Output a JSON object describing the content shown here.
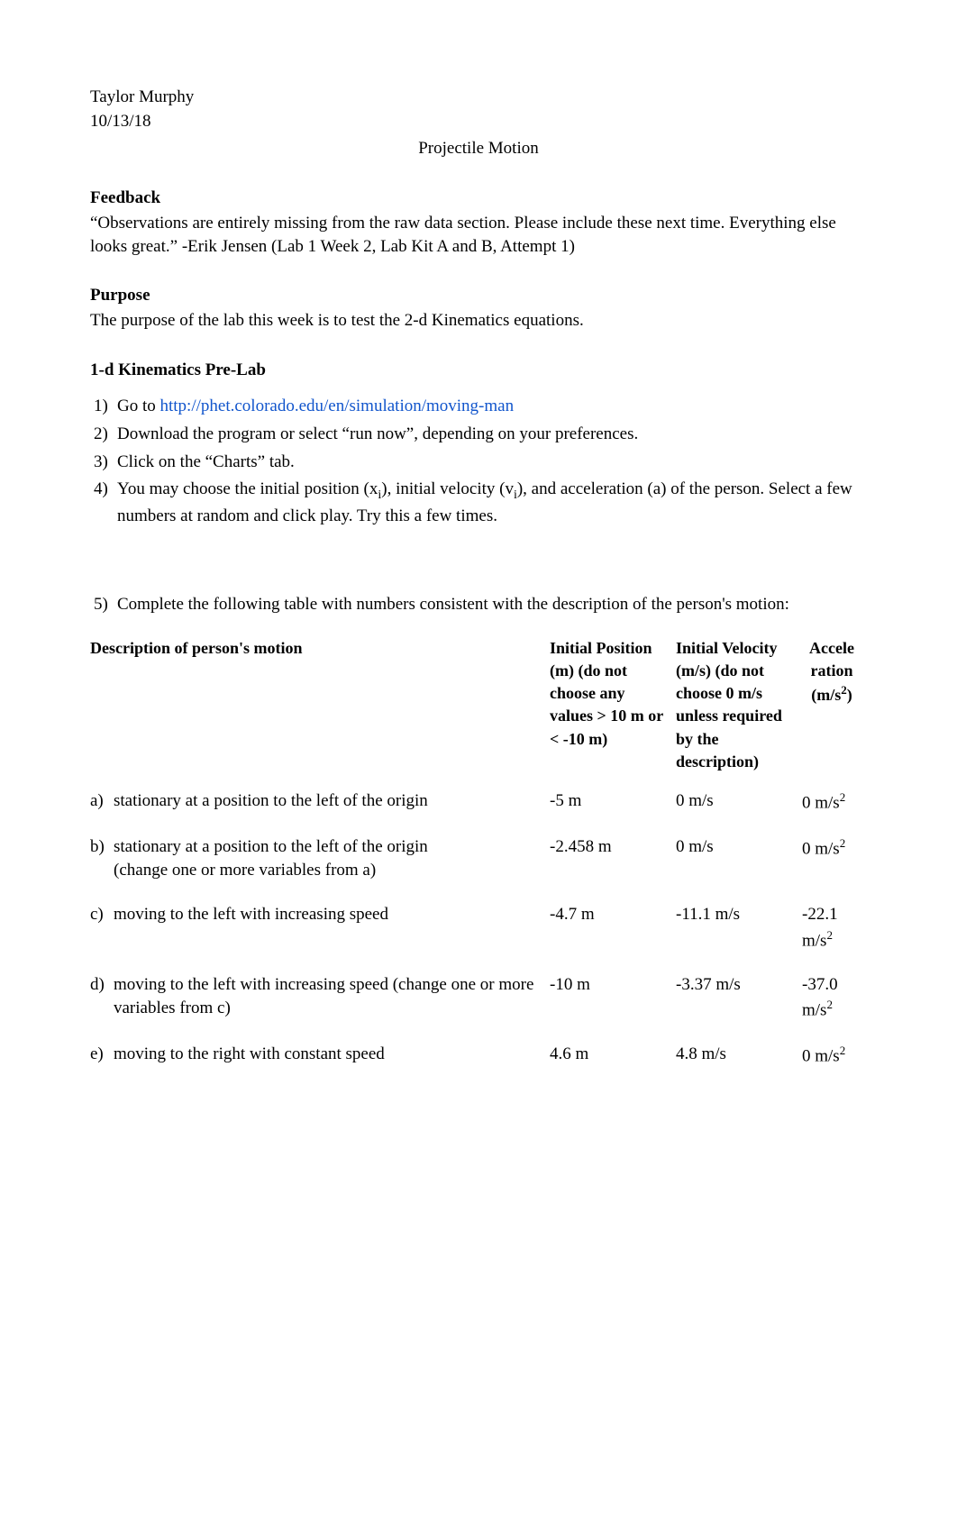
{
  "header": {
    "name": "Taylor Murphy",
    "date": "10/13/18"
  },
  "title": "Projectile Motion",
  "feedback": {
    "heading": "Feedback",
    "text": "“Observations are entirely missing from the raw data section. Please include these next time. Everything else looks great.” -Erik Jensen (Lab 1 Week 2, Lab Kit A and B, Attempt 1)"
  },
  "purpose": {
    "heading": "Purpose",
    "text": "The purpose of the lab this week is to test the 2-d Kinematics equations."
  },
  "prelab": {
    "heading": "1-d Kinematics Pre-Lab",
    "steps": {
      "s1_num": "1)",
      "s1_prefix": "Go to ",
      "s1_link": "http://phet.colorado.edu/en/simulation/moving-man",
      "s2_num": "2)",
      "s2_text": "Download the program or select “run now”, depending on your preferences.",
      "s3_num": "3)",
      "s3_text": "Click on the “Charts” tab.",
      "s4_num": "4)",
      "s4_text_a": "You may choose the initial position (x",
      "s4_sub1": "i",
      "s4_text_b": "), initial velocity (v",
      "s4_sub2": "i",
      "s4_text_c": "), and acceleration (a) of the person. Select a few numbers at random and click play. Try this a few times.",
      "s5_num": "5)",
      "s5_text": "Complete the following table with numbers consistent with the description of the person's motion:"
    }
  },
  "table": {
    "headers": {
      "desc": "Description of person's motion",
      "pos_line1": "Initial Position",
      "pos_line2": "(m) (do not choose any values > 10 m or < -10 m)",
      "vel_line1": "Initial Velocity",
      "vel_line2": "(m/s) (do not choose 0 m/s unless required by the description)",
      "acc_line1": "Accele",
      "acc_line2": "ration",
      "acc_line3": "(m/s",
      "acc_sup": "2",
      "acc_line4": ")"
    },
    "rows": [
      {
        "label": "a)",
        "desc": "stationary at a position to the left of the origin",
        "pos": "-5 m",
        "vel": "0 m/s",
        "acc_a": "0 m/s",
        "acc_sup": "2"
      },
      {
        "label": "b)",
        "desc": "stationary at a position to the left of the origin\n(change one or more variables from a)",
        "pos": "-2.458 m",
        "vel": "0 m/s",
        "acc_a": "0 m/s",
        "acc_sup": "2"
      },
      {
        "label": "c)",
        "desc": "moving to the left with increasing speed",
        "pos": "-4.7 m",
        "vel": "-11.1 m/s",
        "acc_a": "-22.1 m/s",
        "acc_sup": "2"
      },
      {
        "label": "d)",
        "desc": "moving to the left with increasing speed (change one or more variables from c)",
        "pos": "-10 m",
        "vel": "-3.37 m/s",
        "acc_a": "-37.0 m/s",
        "acc_sup": "2"
      },
      {
        "label": "e)",
        "desc": "moving to the right with constant speed",
        "pos": "4.6 m",
        "vel": "4.8 m/s",
        "acc_a": "0 m/s",
        "acc_sup": "2"
      }
    ]
  },
  "colors": {
    "text": "#000000",
    "link": "#1155cc",
    "background": "#ffffff"
  }
}
